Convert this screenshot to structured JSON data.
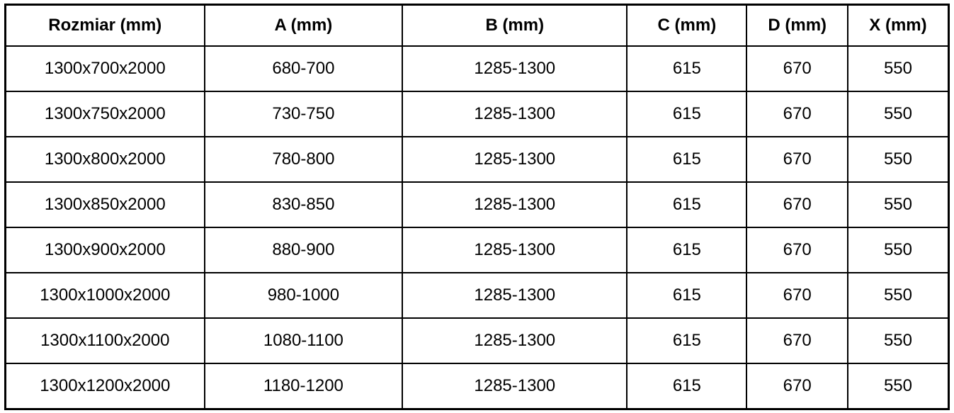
{
  "table": {
    "columns": [
      "Rozmiar (mm)",
      "A (mm)",
      "B (mm)",
      "C (mm)",
      "D (mm)",
      "X (mm)"
    ],
    "rows": [
      [
        "1300x700x2000",
        "680-700",
        "1285-1300",
        "615",
        "670",
        "550"
      ],
      [
        "1300x750x2000",
        "730-750",
        "1285-1300",
        "615",
        "670",
        "550"
      ],
      [
        "1300x800x2000",
        "780-800",
        "1285-1300",
        "615",
        "670",
        "550"
      ],
      [
        "1300x850x2000",
        "830-850",
        "1285-1300",
        "615",
        "670",
        "550"
      ],
      [
        "1300x900x2000",
        "880-900",
        "1285-1300",
        "615",
        "670",
        "550"
      ],
      [
        "1300x1000x2000",
        "980-1000",
        "1285-1300",
        "615",
        "670",
        "550"
      ],
      [
        "1300x1100x2000",
        "1080-1100",
        "1285-1300",
        "615",
        "670",
        "550"
      ],
      [
        "1300x1200x2000",
        "1180-1200",
        "1285-1300",
        "615",
        "670",
        "550"
      ]
    ]
  },
  "colors": {
    "border": "#000000",
    "background": "#ffffff",
    "text": "#000000"
  },
  "chart_data": {
    "type": "table",
    "title": "",
    "columns": [
      "Rozmiar (mm)",
      "A (mm)",
      "B (mm)",
      "C (mm)",
      "D (mm)",
      "X (mm)"
    ],
    "rows": [
      [
        "1300x700x2000",
        "680-700",
        "1285-1300",
        "615",
        "670",
        "550"
      ],
      [
        "1300x750x2000",
        "730-750",
        "1285-1300",
        "615",
        "670",
        "550"
      ],
      [
        "1300x800x2000",
        "780-800",
        "1285-1300",
        "615",
        "670",
        "550"
      ],
      [
        "1300x850x2000",
        "830-850",
        "1285-1300",
        "615",
        "670",
        "550"
      ],
      [
        "1300x900x2000",
        "880-900",
        "1285-1300",
        "615",
        "670",
        "550"
      ],
      [
        "1300x1000x2000",
        "980-1000",
        "1285-1300",
        "615",
        "670",
        "550"
      ],
      [
        "1300x1100x2000",
        "1080-1100",
        "1285-1300",
        "615",
        "670",
        "550"
      ],
      [
        "1300x1200x2000",
        "1180-1200",
        "1285-1300",
        "615",
        "670",
        "550"
      ]
    ]
  }
}
